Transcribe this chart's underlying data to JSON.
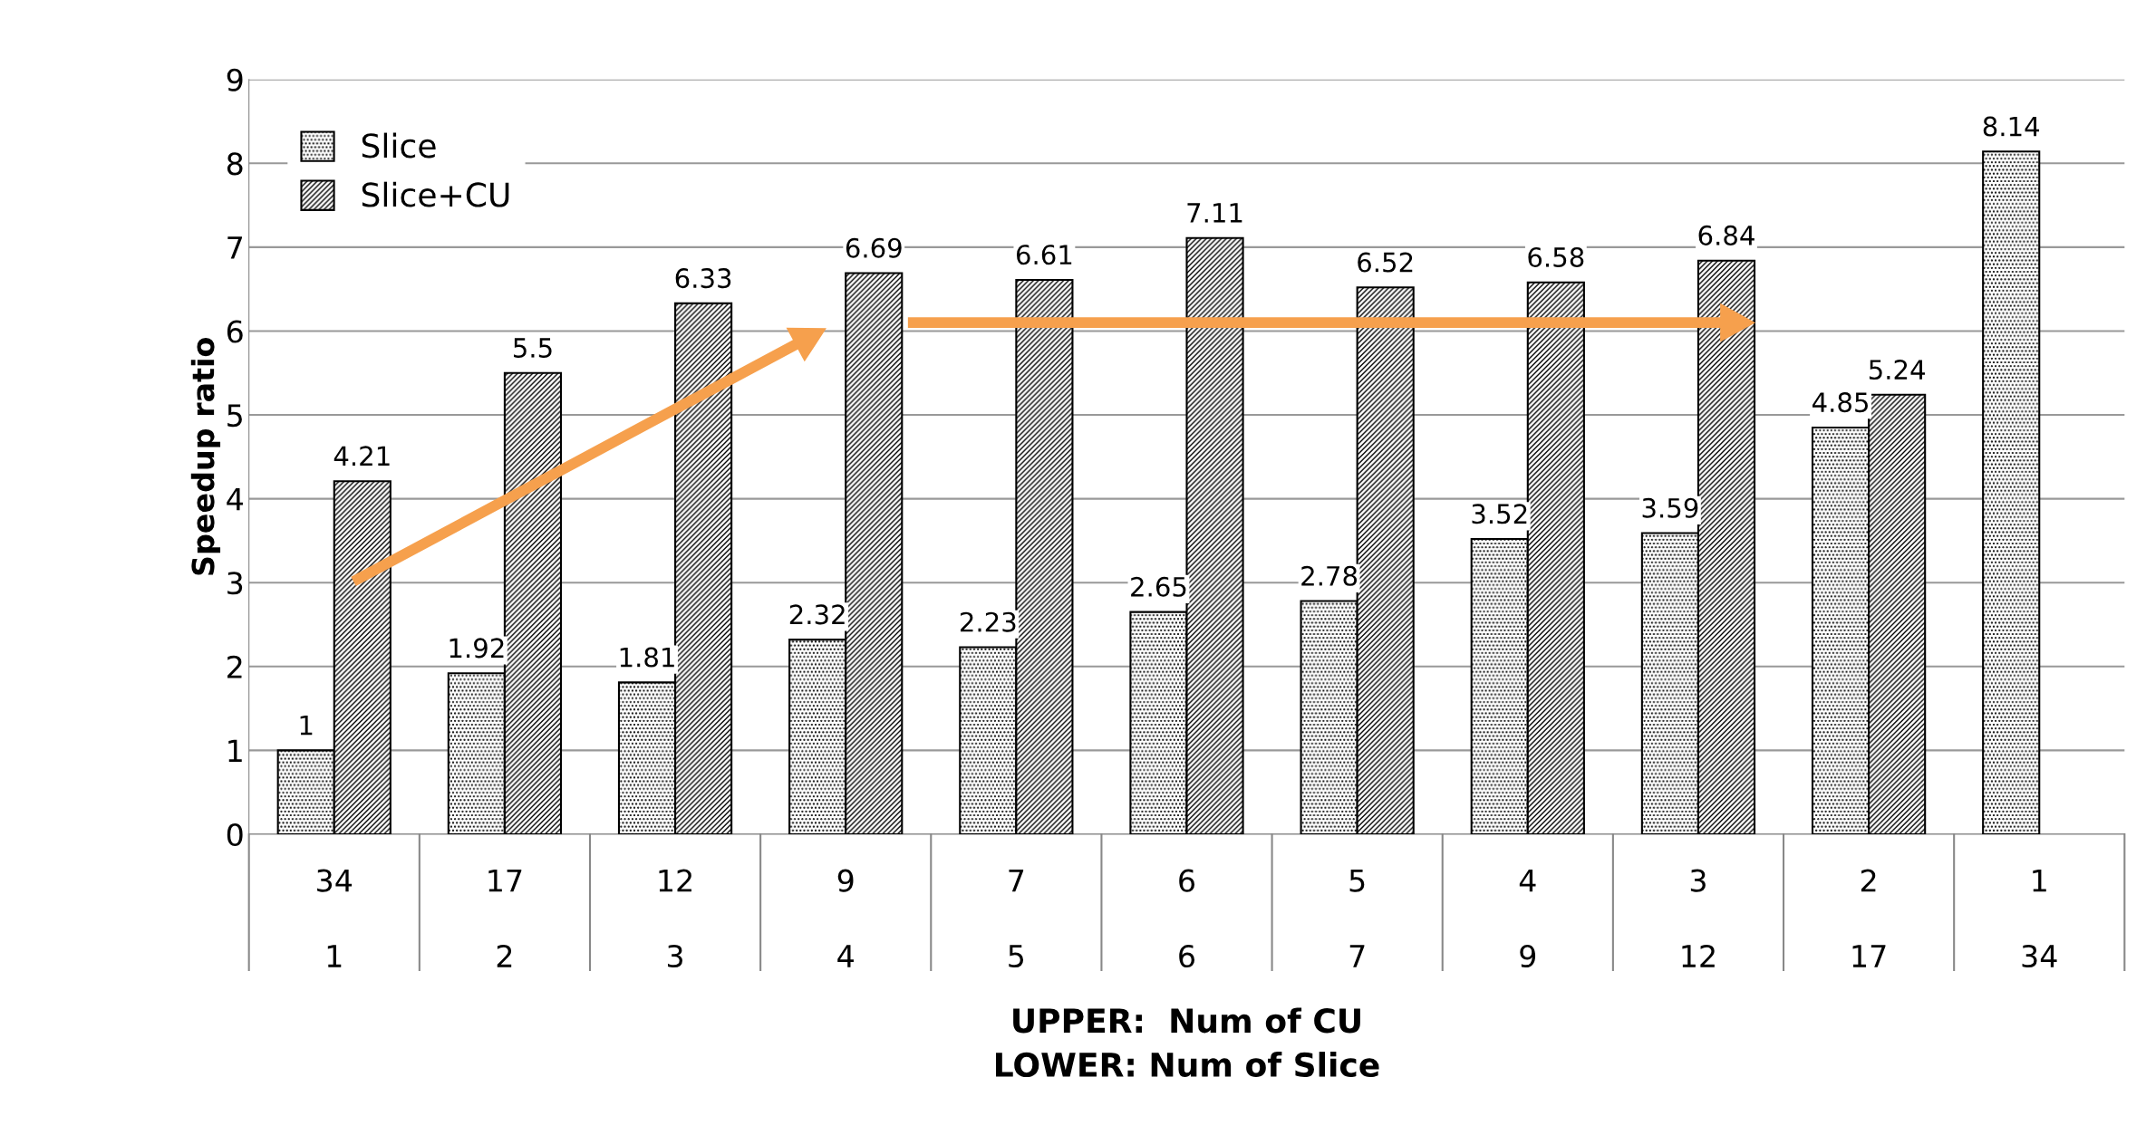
{
  "chart_data": {
    "type": "bar",
    "xlabel": "UPPER:  Num of CU\nLOWER: Num of Slice",
    "ylabel": "Speedup ratio",
    "categories": [
      "34\n1",
      "17\n2",
      "12\n3",
      "9\n4",
      "7\n5",
      "6\n6",
      "5\n7",
      "4\n9",
      "3\n12",
      "2\n17",
      "1\n34"
    ],
    "series": [
      {
        "name": "Slice",
        "color": "#000000",
        "values": [
          1,
          1.92,
          1.81,
          2.32,
          2.23,
          2.65,
          2.78,
          3.52,
          3.59,
          4.85,
          8.14
        ]
      },
      {
        "name": "Slice+CU",
        "color": "#000000",
        "values": [
          4.21,
          5.5,
          6.33,
          6.69,
          6.61,
          7.11,
          6.52,
          6.58,
          6.84,
          5.24,
          null
        ]
      }
    ],
    "ylim": [
      0,
      9
    ],
    "yticks": [
      0,
      1,
      2,
      3,
      4,
      5,
      6,
      7,
      8,
      9
    ],
    "grid": "y",
    "legend": "top left",
    "data_labels": true
  }
}
